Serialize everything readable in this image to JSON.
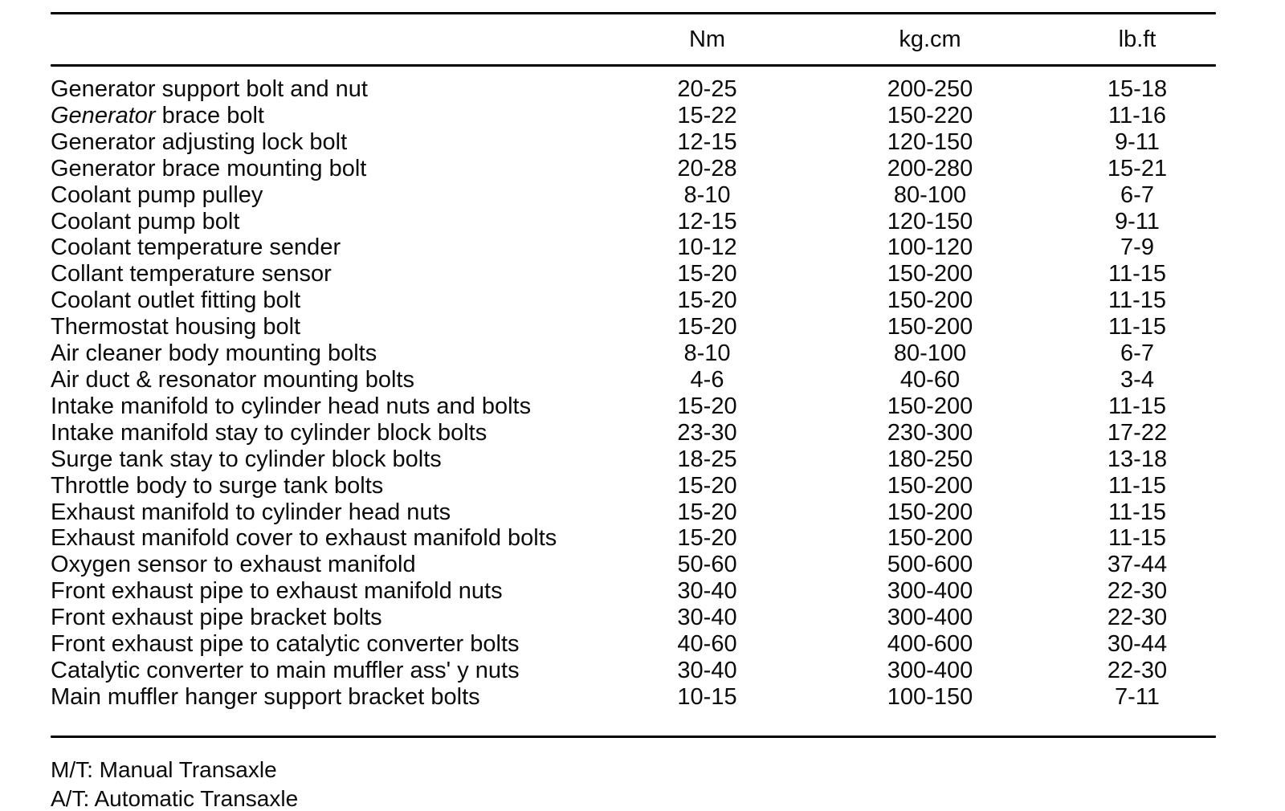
{
  "table": {
    "col_headers": [
      "Nm",
      "kg.cm",
      "lb.ft"
    ],
    "rows": [
      {
        "label": "Generator support bolt and nut",
        "nm": "20-25",
        "kgcm": "200-250",
        "lbft": "15-18"
      },
      {
        "label": "Generator brace bolt",
        "italic": "Generator",
        "nm": "15-22",
        "kgcm": "150-220",
        "lbft": "11-16"
      },
      {
        "label": "Generator adjusting lock bolt",
        "nm": "12-15",
        "kgcm": "120-150",
        "lbft": "9-11"
      },
      {
        "label": "Generator brace mounting bolt",
        "nm": "20-28",
        "kgcm": "200-280",
        "lbft": "15-21"
      },
      {
        "label": "Coolant pump pulley",
        "nm": "8-10",
        "kgcm": "80-100",
        "lbft": "6-7"
      },
      {
        "label": "Coolant pump bolt",
        "nm": "12-15",
        "kgcm": "120-150",
        "lbft": "9-11"
      },
      {
        "label": "Coolant temperature sender",
        "nm": "10-12",
        "kgcm": "100-120",
        "lbft": "7-9"
      },
      {
        "label": "Collant temperature sensor",
        "nm": "15-20",
        "kgcm": "150-200",
        "lbft": "11-15"
      },
      {
        "label": "Coolant outlet fitting bolt",
        "nm": "15-20",
        "kgcm": "150-200",
        "lbft": "11-15"
      },
      {
        "label": "Thermostat housing bolt",
        "nm": "15-20",
        "kgcm": "150-200",
        "lbft": "11-15"
      },
      {
        "label": "Air cleaner body mounting bolts",
        "nm": "8-10",
        "kgcm": "80-100",
        "lbft": "6-7"
      },
      {
        "label": "Air duct & resonator mounting bolts",
        "nm": "4-6",
        "kgcm": "40-60",
        "lbft": "3-4"
      },
      {
        "label": "Intake manifold to cylinder head nuts and bolts",
        "nm": "15-20",
        "kgcm": "150-200",
        "lbft": "11-15"
      },
      {
        "label": "Intake manifold stay to cylinder block bolts",
        "nm": "23-30",
        "kgcm": "230-300",
        "lbft": "17-22"
      },
      {
        "label": "Surge tank stay to cylinder block bolts",
        "nm": "18-25",
        "kgcm": "180-250",
        "lbft": "13-18"
      },
      {
        "label": "Throttle body to surge tank bolts",
        "nm": "15-20",
        "kgcm": "150-200",
        "lbft": "11-15"
      },
      {
        "label": "Exhaust manifold to cylinder head nuts",
        "nm": "15-20",
        "kgcm": "150-200",
        "lbft": "11-15"
      },
      {
        "label": "Exhaust manifold cover to exhaust manifold bolts",
        "nm": "15-20",
        "kgcm": "150-200",
        "lbft": "11-15"
      },
      {
        "label": "Oxygen sensor to exhaust manifold",
        "nm": "50-60",
        "kgcm": "500-600",
        "lbft": "37-44"
      },
      {
        "label": "Front exhaust pipe to exhaust manifold nuts",
        "nm": "30-40",
        "kgcm": "300-400",
        "lbft": "22-30"
      },
      {
        "label": "Front exhaust pipe bracket bolts",
        "nm": "30-40",
        "kgcm": "300-400",
        "lbft": "22-30"
      },
      {
        "label": "Front exhaust pipe to catalytic converter bolts",
        "nm": "40-60",
        "kgcm": "400-600",
        "lbft": "30-44"
      },
      {
        "label": "Catalytic converter to main muffler ass' y nuts",
        "nm": "30-40",
        "kgcm": "300-400",
        "lbft": "22-30"
      },
      {
        "label": "Main muffler hanger support bracket bolts",
        "nm": "10-15",
        "kgcm": "100-150",
        "lbft": "7-11"
      }
    ]
  },
  "footnotes": [
    "M/T: Manual Transaxle",
    "A/T: Automatic Transaxle"
  ]
}
